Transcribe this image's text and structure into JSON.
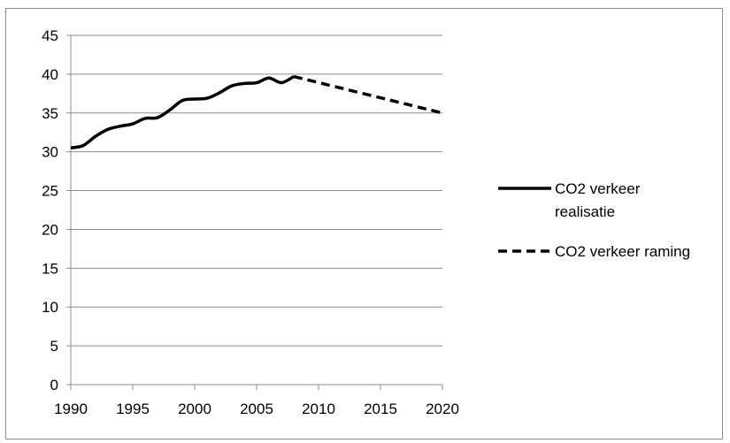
{
  "chart_data": {
    "type": "line",
    "title": "",
    "xlabel": "",
    "ylabel": "",
    "xlim": [
      1990,
      2020
    ],
    "ylim": [
      0,
      45
    ],
    "x_ticks": [
      1990,
      1995,
      2000,
      2005,
      2010,
      2015,
      2020
    ],
    "y_ticks": [
      0,
      5,
      10,
      15,
      20,
      25,
      30,
      35,
      40,
      45
    ],
    "grid": "horizontal",
    "legend_position": "right",
    "series": [
      {
        "name": "CO2 verkeer realisatie",
        "style": "solid",
        "color": "#000000",
        "x": [
          1990,
          1991,
          1992,
          1993,
          1994,
          1995,
          1996,
          1997,
          1998,
          1999,
          2000,
          2001,
          2002,
          2003,
          2004,
          2005,
          2006,
          2007,
          2008
        ],
        "y": [
          30.5,
          30.8,
          32.0,
          32.9,
          33.3,
          33.6,
          34.3,
          34.4,
          35.4,
          36.6,
          36.8,
          36.9,
          37.6,
          38.5,
          38.8,
          38.9,
          39.5,
          38.9,
          39.7
        ]
      },
      {
        "name": "CO2 verkeer raming",
        "style": "dashed",
        "color": "#000000",
        "x": [
          2008,
          2020
        ],
        "y": [
          39.7,
          35.0
        ]
      }
    ]
  }
}
